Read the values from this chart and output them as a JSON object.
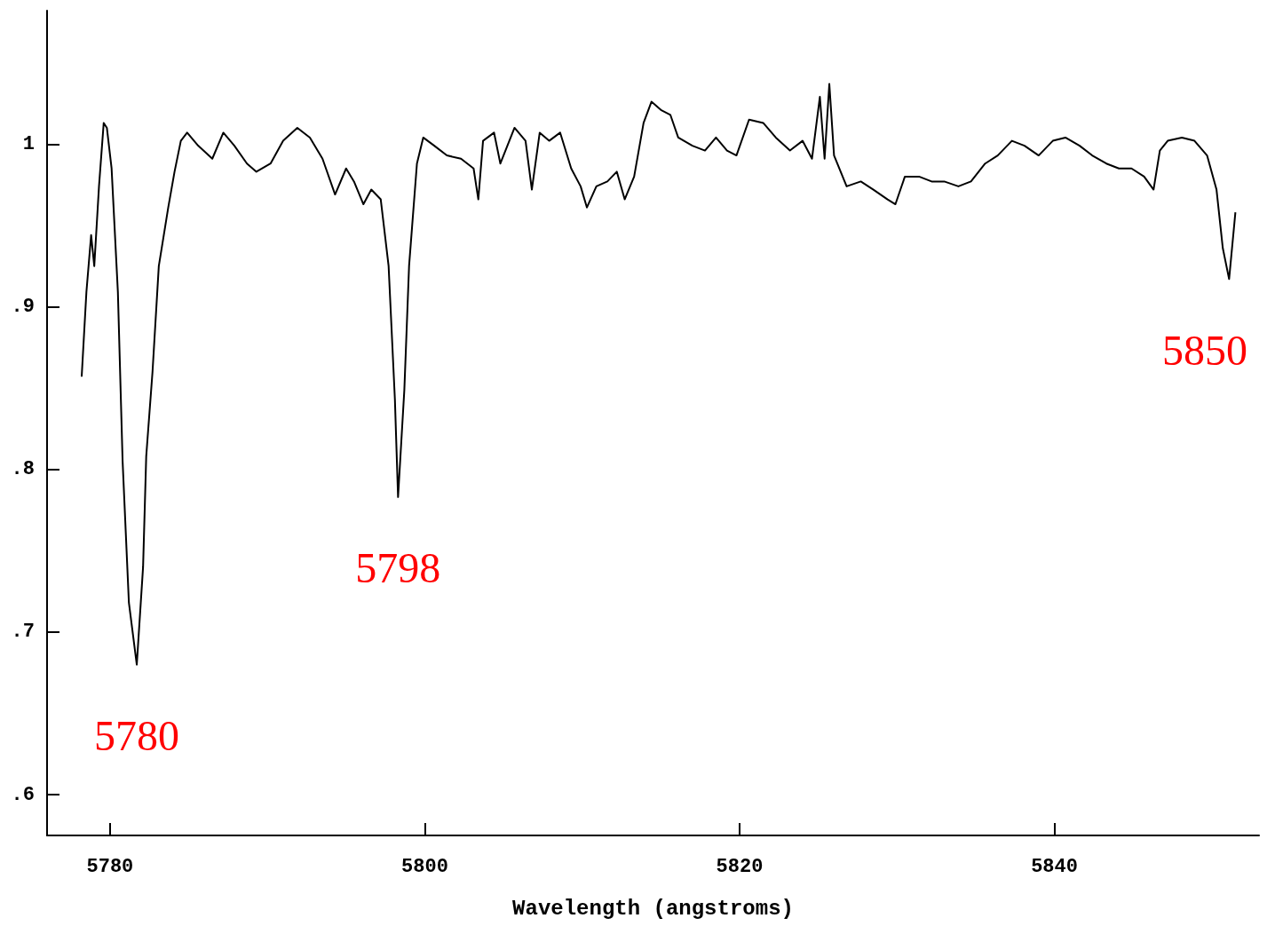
{
  "chart_data": {
    "type": "line",
    "xlabel": "Wavelength (angstroms)",
    "xlim": [
      5776,
      5853
    ],
    "xticks": [
      5780,
      5800,
      5820,
      5840
    ],
    "ylim": [
      0.575,
      1.082
    ],
    "yticks": [
      {
        "value": 0.6,
        "label": ".6"
      },
      {
        "value": 0.7,
        "label": ".7"
      },
      {
        "value": 0.8,
        "label": ".8"
      },
      {
        "value": 0.9,
        "label": ".9"
      },
      {
        "value": 1,
        "label": "1"
      }
    ],
    "line_style": "solid",
    "annotations": [
      {
        "text": "5780",
        "x": 5781.7,
        "y": 0.68
      },
      {
        "text": "5798",
        "x": 5798.3,
        "y": 0.783
      },
      {
        "text": "5850",
        "x": 5851.1,
        "y": 0.917
      }
    ],
    "series": [
      {
        "color": "#000000",
        "x": [
          5778.2,
          5778.5,
          5778.8,
          5779.0,
          5779.3,
          5779.6,
          5779.8,
          5780.1,
          5780.5,
          5780.8,
          5781.2,
          5781.7,
          5782.1,
          5782.3,
          5782.7,
          5783.1,
          5783.7,
          5784.1,
          5784.5,
          5784.9,
          5785.6,
          5786.5,
          5787.2,
          5787.9,
          5788.7,
          5789.3,
          5790.2,
          5791.0,
          5791.9,
          5792.7,
          5793.5,
          5794.3,
          5795.0,
          5795.5,
          5796.1,
          5796.6,
          5797.2,
          5797.7,
          5798.1,
          5798.3,
          5798.7,
          5799.0,
          5799.5,
          5799.9,
          5800.6,
          5801.4,
          5802.3,
          5803.1,
          5803.4,
          5803.7,
          5804.4,
          5804.8,
          5805.7,
          5806.4,
          5806.8,
          5807.3,
          5807.9,
          5808.6,
          5809.3,
          5809.9,
          5810.3,
          5810.9,
          5811.6,
          5812.2,
          5812.7,
          5813.3,
          5813.9,
          5814.4,
          5815.0,
          5815.6,
          5816.1,
          5817.0,
          5817.8,
          5818.5,
          5819.2,
          5819.8,
          5820.6,
          5821.5,
          5822.3,
          5823.2,
          5824.0,
          5824.6,
          5825.1,
          5825.4,
          5825.7,
          5826.0,
          5826.8,
          5827.7,
          5828.5,
          5829.4,
          5829.9,
          5830.5,
          5831.4,
          5832.2,
          5833.0,
          5833.9,
          5834.7,
          5835.6,
          5836.4,
          5837.3,
          5838.1,
          5839.0,
          5839.9,
          5840.7,
          5841.6,
          5842.4,
          5843.3,
          5844.1,
          5844.9,
          5845.7,
          5846.3,
          5846.7,
          5847.2,
          5848.1,
          5848.9,
          5849.7,
          5850.3,
          5850.7,
          5851.1,
          5851.5
        ],
        "values": [
          0.857,
          0.909,
          0.944,
          0.925,
          0.974,
          1.013,
          1.01,
          0.985,
          0.909,
          0.805,
          0.718,
          0.68,
          0.74,
          0.808,
          0.86,
          0.925,
          0.961,
          0.983,
          1.002,
          1.007,
          0.999,
          0.991,
          1.007,
          0.999,
          0.988,
          0.983,
          0.988,
          1.002,
          1.01,
          1.004,
          0.991,
          0.969,
          0.985,
          0.977,
          0.963,
          0.972,
          0.966,
          0.925,
          0.843,
          0.783,
          0.849,
          0.925,
          0.988,
          1.004,
          0.999,
          0.993,
          0.991,
          0.985,
          0.966,
          1.002,
          1.007,
          0.988,
          1.01,
          1.002,
          0.972,
          1.007,
          1.002,
          1.007,
          0.985,
          0.974,
          0.961,
          0.974,
          0.977,
          0.983,
          0.966,
          0.98,
          1.013,
          1.026,
          1.021,
          1.018,
          1.004,
          0.999,
          0.996,
          1.004,
          0.996,
          0.993,
          1.015,
          1.013,
          1.004,
          0.996,
          1.002,
          0.991,
          1.029,
          0.991,
          1.037,
          0.993,
          0.974,
          0.977,
          0.972,
          0.966,
          0.963,
          0.98,
          0.98,
          0.977,
          0.977,
          0.974,
          0.977,
          0.988,
          0.993,
          1.002,
          0.999,
          0.993,
          1.002,
          1.004,
          0.999,
          0.993,
          0.988,
          0.985,
          0.985,
          0.98,
          0.972,
          0.996,
          1.002,
          1.004,
          1.002,
          0.993,
          0.972,
          0.936,
          0.917,
          0.958
        ]
      }
    ]
  }
}
